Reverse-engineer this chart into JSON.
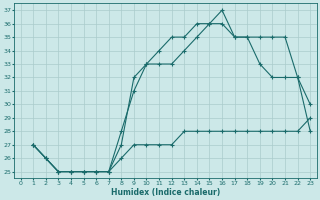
{
  "xlabel": "Humidex (Indice chaleur)",
  "bg_color": "#cce8e8",
  "line_color": "#1a6b6b",
  "grid_color": "#aacccc",
  "xlim": [
    -0.5,
    23.5
  ],
  "ylim": [
    24.5,
    37.5
  ],
  "xticks": [
    0,
    1,
    2,
    3,
    4,
    5,
    6,
    7,
    8,
    9,
    10,
    11,
    12,
    13,
    14,
    15,
    16,
    17,
    18,
    19,
    20,
    21,
    22,
    23
  ],
  "yticks": [
    25,
    26,
    27,
    28,
    29,
    30,
    31,
    32,
    33,
    34,
    35,
    36,
    37
  ],
  "line1_x": [
    1,
    2,
    3,
    4,
    5,
    6,
    7,
    8,
    9,
    10,
    11,
    12,
    13,
    14,
    15,
    16,
    17,
    18,
    19,
    20,
    21,
    22,
    23
  ],
  "line1_y": [
    27,
    26,
    25,
    25,
    25,
    25,
    25,
    28,
    31,
    33,
    34,
    35,
    35,
    36,
    36,
    37,
    35,
    35,
    35,
    35,
    35,
    32,
    28
  ],
  "line2_x": [
    1,
    2,
    3,
    4,
    5,
    6,
    7,
    8,
    9,
    10,
    11,
    12,
    13,
    14,
    15,
    16,
    17,
    18,
    19,
    20,
    21,
    22,
    23
  ],
  "line2_y": [
    27,
    26,
    25,
    25,
    25,
    25,
    25,
    27,
    32,
    33,
    33,
    33,
    34,
    35,
    36,
    36,
    35,
    35,
    33,
    32,
    32,
    32,
    30
  ],
  "line3_x": [
    1,
    2,
    3,
    4,
    5,
    6,
    7,
    8,
    9,
    10,
    11,
    12,
    13,
    14,
    15,
    16,
    17,
    18,
    19,
    20,
    21,
    22,
    23
  ],
  "line3_y": [
    27,
    26,
    25,
    25,
    25,
    25,
    25,
    26,
    27,
    27,
    27,
    27,
    28,
    28,
    28,
    28,
    28,
    28,
    28,
    28,
    28,
    28,
    29
  ]
}
